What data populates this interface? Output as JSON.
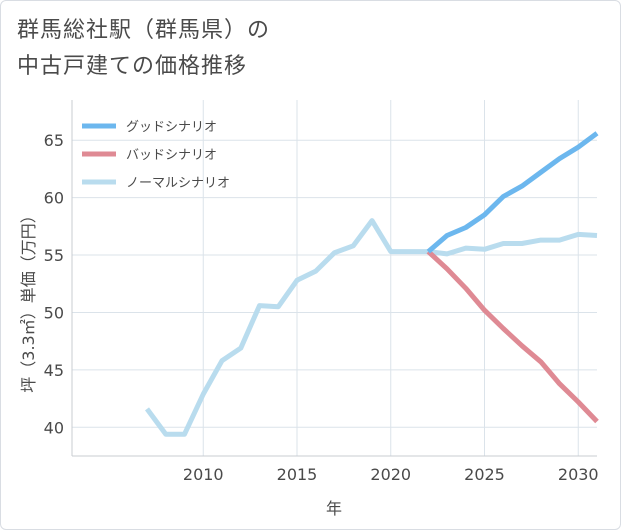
{
  "title_lines": [
    "群馬総社駅（群馬県）の",
    "中古戸建ての価格推移"
  ],
  "chart_data": {
    "type": "line",
    "title": "群馬総社駅（群馬県）の中古戸建ての価格推移",
    "xlabel": "年",
    "ylabel": "坪（3.3㎡）単価（万円）",
    "xlim": [
      2003,
      2031
    ],
    "ylim": [
      37.5,
      68.5
    ],
    "xticks": [
      2010,
      2015,
      2020,
      2025,
      2030
    ],
    "yticks": [
      40,
      45,
      50,
      55,
      60,
      65
    ],
    "grid": true,
    "legend_position": "top-left",
    "series": [
      {
        "name": "グッドシナリオ",
        "color": "#6cb7ee",
        "x": [
          2022,
          2023,
          2024,
          2025,
          2026,
          2027,
          2028,
          2029,
          2030,
          2031
        ],
        "values": [
          55.3,
          56.7,
          57.4,
          58.5,
          60.1,
          61.0,
          62.2,
          63.4,
          64.4,
          65.6
        ]
      },
      {
        "name": "バッドシナリオ",
        "color": "#df8a94",
        "x": [
          2022,
          2023,
          2024,
          2025,
          2026,
          2027,
          2028,
          2029,
          2030,
          2031
        ],
        "values": [
          55.3,
          53.8,
          52.1,
          50.2,
          48.6,
          47.1,
          45.7,
          43.8,
          42.2,
          40.5
        ]
      },
      {
        "name": "ノーマルシナリオ",
        "color": "#b9dcee",
        "x": [
          2007,
          2008,
          2009,
          2010,
          2011,
          2012,
          2013,
          2014,
          2015,
          2016,
          2017,
          2018,
          2019,
          2020,
          2021,
          2022,
          2023,
          2024,
          2025,
          2026,
          2027,
          2028,
          2029,
          2030,
          2031
        ],
        "values": [
          41.6,
          39.4,
          39.4,
          42.9,
          45.8,
          46.9,
          50.6,
          50.5,
          52.8,
          53.6,
          55.2,
          55.8,
          58.0,
          55.3,
          55.3,
          55.3,
          55.1,
          55.6,
          55.5,
          56.0,
          56.0,
          56.3,
          56.3,
          56.8,
          56.7
        ]
      }
    ]
  }
}
